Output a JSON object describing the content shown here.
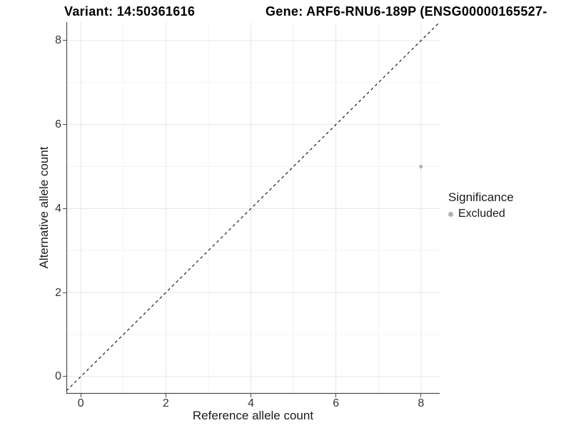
{
  "header": {
    "variant_title": "Variant: 14:50361616",
    "gene_title": "Gene: ARF6-RNU6-189P (ENSG00000165527-"
  },
  "legend": {
    "title": "Significance",
    "items": [
      {
        "label": "Excluded",
        "color": "#b3b3b3"
      }
    ]
  },
  "chart_data": {
    "type": "scatter",
    "title": "Variant: 14:50361616",
    "subtitle": "Gene: ARF6-RNU6-189P (ENSG00000165527-",
    "xlabel": "Reference allele count",
    "ylabel": "Alternative allele count",
    "xlim": [
      -0.34,
      8.44
    ],
    "ylim": [
      -0.41,
      8.44
    ],
    "x_ticks": [
      0,
      2,
      4,
      6,
      8
    ],
    "y_ticks": [
      0,
      2,
      4,
      6,
      8
    ],
    "x_minor_ticks": [
      1,
      3,
      5,
      7
    ],
    "y_minor_ticks": [
      1,
      3,
      5,
      7
    ],
    "grid": "major+minor",
    "legend_position": "right",
    "legend_title": "Significance",
    "series": [
      {
        "name": "Excluded",
        "color": "#b3b3b3",
        "marker": "circle",
        "size": 2.6,
        "points": [
          {
            "x": 8,
            "y": 5
          }
        ]
      }
    ],
    "reference_line": {
      "kind": "identity y = x",
      "linetype": "dashed",
      "color": "#1a1a1a"
    }
  },
  "style": {
    "grid_major_color": "#e6e6e6",
    "grid_minor_color": "#f3f3f3",
    "axis_line_color": "#4d4d4d",
    "tick_mark_color": "#4d4d4d",
    "tick_label_color": "#333333",
    "text_color": "#1a1a1a",
    "title_color": "#000000"
  }
}
